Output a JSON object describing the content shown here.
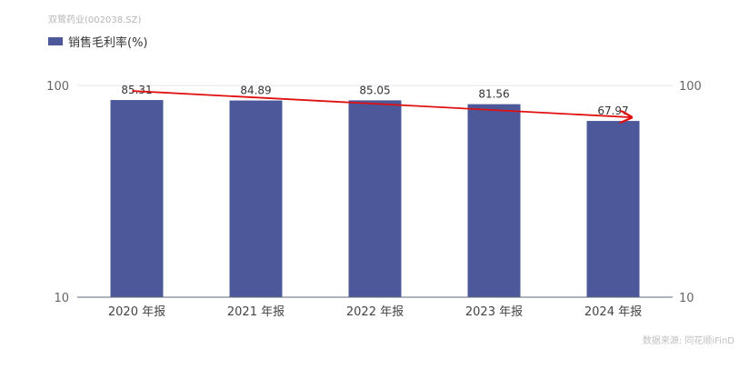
{
  "header": {
    "company": "双鹭药业(002038.SZ)",
    "legend_label": "销售毛利率(%)",
    "legend_color": "#4c5899"
  },
  "footer": {
    "source": "数据来源: 同花顺iFinD"
  },
  "chart_data": {
    "type": "bar",
    "categories": [
      "2020 年报",
      "2021 年报",
      "2022 年报",
      "2023 年报",
      "2024 年报"
    ],
    "series": [
      {
        "name": "销售毛利率(%)",
        "values": [
          85.31,
          84.89,
          85.05,
          81.56,
          67.97
        ],
        "color": "#4c5899"
      }
    ],
    "y_scale": "log",
    "ylim": [
      10,
      100
    ],
    "y_ticks": [
      "10",
      "100"
    ],
    "y_ticks_right": [
      "10",
      "100"
    ],
    "trend_arrow": {
      "from": "2020 年报",
      "to": "2024 年报",
      "color": "#e01010"
    },
    "gridlines": true
  }
}
